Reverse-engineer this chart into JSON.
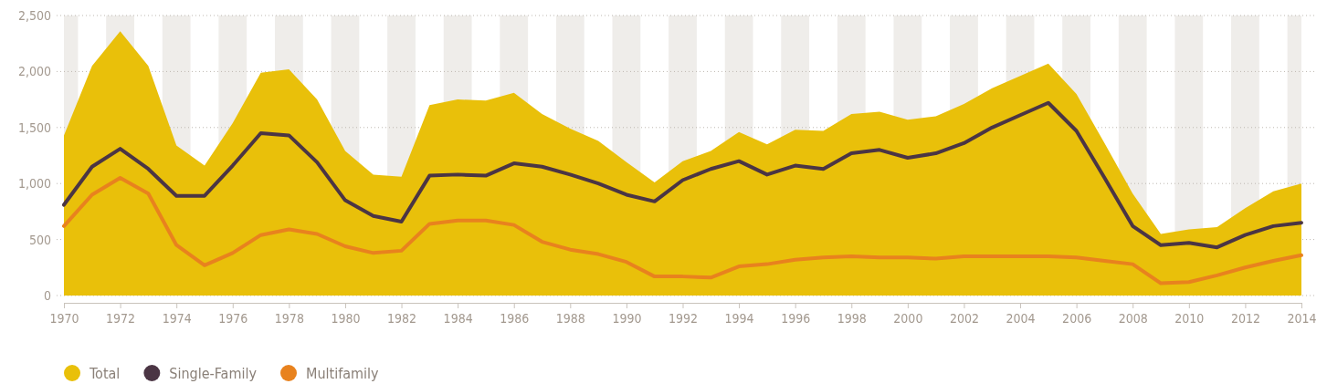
{
  "chart_data": {
    "type": "line",
    "x": [
      1970,
      1971,
      1972,
      1973,
      1974,
      1975,
      1976,
      1977,
      1978,
      1979,
      1980,
      1981,
      1982,
      1983,
      1984,
      1985,
      1986,
      1987,
      1988,
      1989,
      1990,
      1991,
      1992,
      1993,
      1994,
      1995,
      1996,
      1997,
      1998,
      1999,
      2000,
      2001,
      2002,
      2003,
      2004,
      2005,
      2006,
      2007,
      2008,
      2009,
      2010,
      2011,
      2012,
      2013,
      2014
    ],
    "series": [
      {
        "name": "Total",
        "type": "area",
        "color": "#e9c00a",
        "values": [
          1430,
          2050,
          2360,
          2050,
          1340,
          1160,
          1540,
          1990,
          2020,
          1750,
          1290,
          1080,
          1060,
          1700,
          1750,
          1740,
          1810,
          1620,
          1490,
          1380,
          1190,
          1010,
          1200,
          1290,
          1460,
          1350,
          1480,
          1470,
          1620,
          1640,
          1570,
          1600,
          1710,
          1850,
          1960,
          2070,
          1800,
          1360,
          910,
          550,
          590,
          610,
          780,
          930,
          1000
        ]
      },
      {
        "name": "Single-Family",
        "color": "#4b3544",
        "values": [
          810,
          1150,
          1310,
          1130,
          890,
          890,
          1160,
          1450,
          1430,
          1190,
          850,
          710,
          660,
          1070,
          1080,
          1070,
          1180,
          1150,
          1080,
          1000,
          900,
          840,
          1030,
          1130,
          1200,
          1080,
          1160,
          1130,
          1270,
          1300,
          1230,
          1270,
          1360,
          1500,
          1610,
          1720,
          1470,
          1050,
          620,
          450,
          470,
          430,
          540,
          620,
          650
        ]
      },
      {
        "name": "Multifamily",
        "color": "#e8821e",
        "values": [
          620,
          900,
          1050,
          910,
          450,
          270,
          380,
          540,
          590,
          550,
          440,
          380,
          400,
          640,
          670,
          670,
          630,
          480,
          410,
          370,
          300,
          170,
          170,
          160,
          260,
          280,
          320,
          340,
          350,
          340,
          340,
          330,
          350,
          350,
          350,
          350,
          340,
          310,
          280,
          110,
          120,
          180,
          250,
          310,
          360
        ]
      }
    ],
    "xlim": [
      1970,
      2014
    ],
    "xticks": [
      1970,
      1972,
      1974,
      1976,
      1978,
      1980,
      1982,
      1984,
      1986,
      1988,
      1990,
      1992,
      1994,
      1996,
      1998,
      2000,
      2002,
      2004,
      2006,
      2008,
      2010,
      2012,
      2014
    ],
    "ylim": [
      0,
      2500
    ],
    "yticks": [
      0,
      {
        "value": 500,
        "label": "500"
      },
      {
        "value": 1000,
        "label": "1,000"
      },
      {
        "value": 1500,
        "label": "1,500"
      },
      {
        "value": 2000,
        "label": "2,000"
      },
      {
        "value": 2500,
        "label": "2,500"
      }
    ],
    "bands": [
      {
        "axis": "x",
        "from": 1970,
        "to": 1970.5,
        "color": "#efedea"
      },
      {
        "axis": "x",
        "from": 1971.5,
        "to": 1972.5,
        "color": "#efedea"
      },
      {
        "axis": "x",
        "from": 1973.5,
        "to": 1974.5,
        "color": "#efedea"
      },
      {
        "axis": "x",
        "from": 1975.5,
        "to": 1976.5,
        "color": "#efedea"
      },
      {
        "axis": "x",
        "from": 1977.5,
        "to": 1978.5,
        "color": "#efedea"
      },
      {
        "axis": "x",
        "from": 1979.5,
        "to": 1980.5,
        "color": "#efedea"
      },
      {
        "axis": "x",
        "from": 1981.5,
        "to": 1982.5,
        "color": "#efedea"
      },
      {
        "axis": "x",
        "from": 1983.5,
        "to": 1984.5,
        "color": "#efedea"
      },
      {
        "axis": "x",
        "from": 1985.5,
        "to": 1986.5,
        "color": "#efedea"
      },
      {
        "axis": "x",
        "from": 1987.5,
        "to": 1988.5,
        "color": "#efedea"
      },
      {
        "axis": "x",
        "from": 1989.5,
        "to": 1990.5,
        "color": "#efedea"
      },
      {
        "axis": "x",
        "from": 1991.5,
        "to": 1992.5,
        "color": "#efedea"
      },
      {
        "axis": "x",
        "from": 1993.5,
        "to": 1994.5,
        "color": "#efedea"
      },
      {
        "axis": "x",
        "from": 1995.5,
        "to": 1996.5,
        "color": "#efedea"
      },
      {
        "axis": "x",
        "from": 1997.5,
        "to": 1998.5,
        "color": "#efedea"
      },
      {
        "axis": "x",
        "from": 1999.5,
        "to": 2000.5,
        "color": "#efedea"
      },
      {
        "axis": "x",
        "from": 2001.5,
        "to": 2002.5,
        "color": "#efedea"
      },
      {
        "axis": "x",
        "from": 2003.5,
        "to": 2004.5,
        "color": "#efedea"
      },
      {
        "axis": "x",
        "from": 2005.5,
        "to": 2006.5,
        "color": "#efedea"
      },
      {
        "axis": "x",
        "from": 2007.5,
        "to": 2008.5,
        "color": "#efedea"
      },
      {
        "axis": "x",
        "from": 2009.5,
        "to": 2010.5,
        "color": "#efedea"
      },
      {
        "axis": "x",
        "from": 2011.5,
        "to": 2012.5,
        "color": "#efedea"
      },
      {
        "axis": "x",
        "from": 2013.5,
        "to": 2014,
        "color": "#efedea"
      }
    ],
    "grid": "y",
    "legend": "bottom left",
    "marker": "none",
    "line_style": "solid"
  }
}
